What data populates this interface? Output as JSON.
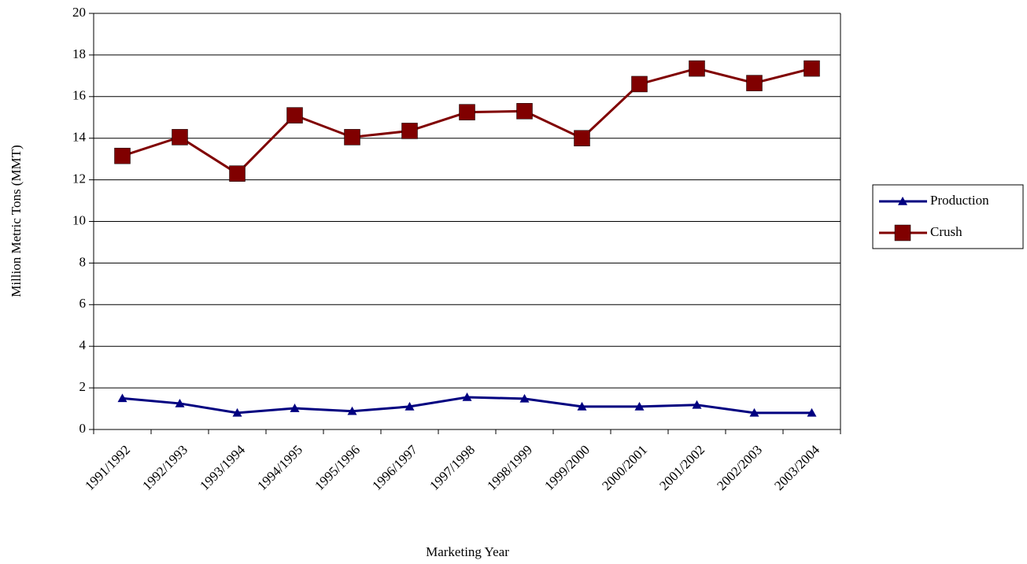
{
  "chart_data": {
    "type": "line",
    "x_label": "Marketing Year",
    "y_label": "Million Metric Tons (MMT)",
    "categories": [
      "1991/1992",
      "1992/1993",
      "1993/1994",
      "1994/1995",
      "1995/1996",
      "1996/1997",
      "1997/1998",
      "1998/1999",
      "1999/2000",
      "2000/2001",
      "2001/2002",
      "2002/2003",
      "2003/2004"
    ],
    "series": [
      {
        "name": "Production",
        "color": "#000080",
        "marker": "triangle",
        "values": [
          1.5,
          1.25,
          0.8,
          1.02,
          0.88,
          1.1,
          1.55,
          1.48,
          1.1,
          1.1,
          1.18,
          0.8,
          0.8
        ]
      },
      {
        "name": "Crush",
        "color": "#800000",
        "marker": "square",
        "values": [
          13.15,
          14.05,
          12.3,
          15.1,
          14.05,
          14.35,
          15.25,
          15.3,
          14.0,
          16.6,
          17.35,
          16.65,
          17.35
        ]
      }
    ],
    "ylim": [
      0,
      20
    ],
    "yticks": [
      0,
      2,
      4,
      6,
      8,
      10,
      12,
      14,
      16,
      18,
      20
    ],
    "grid": true,
    "legend": "right"
  }
}
